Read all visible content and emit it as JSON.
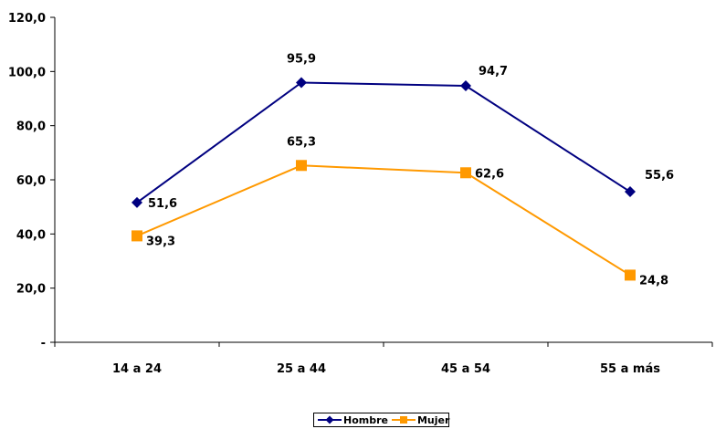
{
  "chart_data": {
    "type": "line",
    "categories": [
      "14 a 24",
      "25 a 44",
      "45 a 54",
      "55 a más"
    ],
    "series": [
      {
        "name": "Hombre",
        "values": [
          51.6,
          95.9,
          94.7,
          55.6
        ],
        "labels": [
          "51,6",
          "95,9",
          "94,7",
          "55,6"
        ],
        "color": "#000080",
        "marker": "diamond"
      },
      {
        "name": "Mujer",
        "values": [
          39.3,
          65.3,
          62.6,
          24.8
        ],
        "labels": [
          "39,3",
          "65,3",
          "62,6",
          "24,8"
        ],
        "color": "#FF9900",
        "marker": "square"
      }
    ],
    "y_ticks": [
      {
        "value": 0,
        "label": "-"
      },
      {
        "value": 20,
        "label": "20,0"
      },
      {
        "value": 40,
        "label": "40,0"
      },
      {
        "value": 60,
        "label": "60,0"
      },
      {
        "value": 80,
        "label": "80,0"
      },
      {
        "value": 100,
        "label": "100,0"
      },
      {
        "value": 120,
        "label": "120,0"
      }
    ],
    "ylim": [
      0,
      120
    ],
    "grid": false,
    "legend_position": "bottom"
  }
}
